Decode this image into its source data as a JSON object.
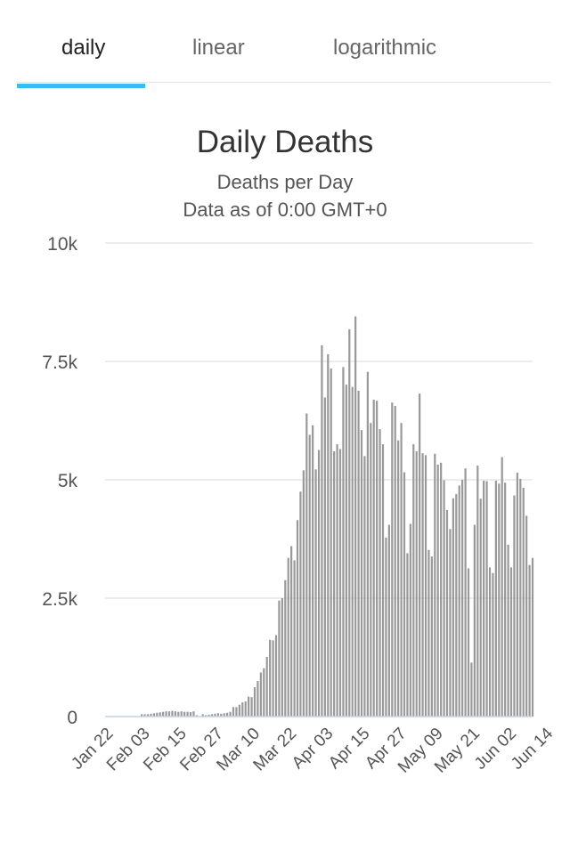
{
  "tabs": [
    {
      "label": "daily",
      "active": true
    },
    {
      "label": "linear",
      "active": false
    },
    {
      "label": "logarithmic",
      "active": false
    }
  ],
  "colors": {
    "accent": "#33c0ee",
    "bar": "#999999",
    "grid": "#e6e6e6",
    "baseline": "#c3d2e6"
  },
  "chart_data": {
    "type": "bar",
    "title": "Daily Deaths",
    "subtitle": "Deaths per Day",
    "subtitle2": "Data as of 0:00 GMT+0",
    "xlabel": "",
    "ylabel": "",
    "ylim": [
      0,
      10000
    ],
    "yticks": [
      0,
      2500,
      5000,
      7500,
      10000
    ],
    "ytick_labels": [
      "0",
      "2.5k",
      "5k",
      "7.5k",
      "10k"
    ],
    "grid": true,
    "legend": "none",
    "x_tick_labels": [
      "Jan 22",
      "Feb 03",
      "Feb 15",
      "Feb 27",
      "Mar 10",
      "Mar 22",
      "Apr 03",
      "Apr 15",
      "Apr 27",
      "May 09",
      "May 21",
      "Jun 02",
      "Jun 14"
    ],
    "x_tick_every": 12,
    "start_date": "Jan 22",
    "values": [
      0,
      0,
      0,
      0,
      0,
      0,
      0,
      0,
      0,
      0,
      0,
      0,
      50,
      50,
      50,
      60,
      70,
      80,
      90,
      100,
      110,
      110,
      120,
      110,
      100,
      110,
      100,
      100,
      95,
      110,
      30,
      10,
      50,
      30,
      40,
      50,
      60,
      70,
      60,
      70,
      80,
      100,
      200,
      200,
      250,
      300,
      320,
      420,
      410,
      620,
      750,
      930,
      1020,
      1260,
      1620,
      1610,
      1720,
      2450,
      2500,
      2880,
      3350,
      3600,
      3300,
      4150,
      4750,
      5200,
      6400,
      5950,
      6150,
      5220,
      5630,
      7840,
      6740,
      7650,
      7350,
      5600,
      5750,
      5650,
      7380,
      7010,
      8180,
      6960,
      8450,
      6880,
      6050,
      5500,
      7280,
      6200,
      6690,
      6670,
      6070,
      5750,
      3780,
      4050,
      6630,
      6560,
      5830,
      6200,
      5160,
      3450,
      4070,
      5750,
      5600,
      6820,
      5560,
      5520,
      3520,
      3380,
      5550,
      5320,
      5360,
      4990,
      4360,
      3960,
      4610,
      4700,
      4880,
      5000,
      5240,
      3130,
      1140,
      4050,
      5300,
      4600,
      4980,
      4970,
      3150,
      3030,
      4980,
      4920,
      5480,
      4940,
      3630,
      3150,
      4670,
      5150,
      5020,
      4830,
      4240,
      3200,
      3350
    ]
  }
}
